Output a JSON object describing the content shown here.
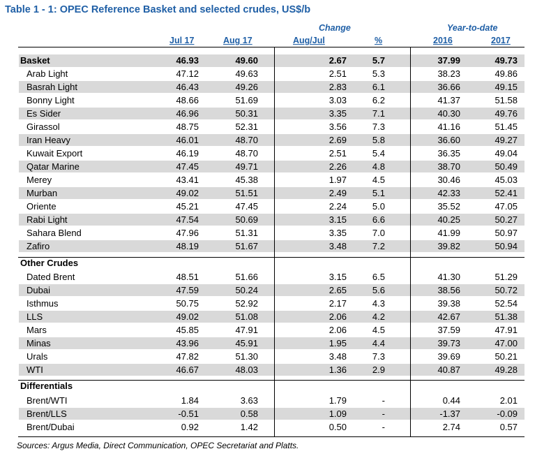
{
  "title": "Table 1 - 1: OPEC Reference Basket and selected crudes, US$/b",
  "headers": {
    "change": "Change",
    "ytd": "Year-to-date",
    "jul17": "Jul 17",
    "aug17": "Aug 17",
    "augjul": "Aug/Jul",
    "pct": "%",
    "y2016": "2016",
    "y2017": "2017"
  },
  "basket": {
    "name": "Basket",
    "jul": "46.93",
    "aug": "49.60",
    "chg": "2.67",
    "pct": "5.7",
    "y16": "37.99",
    "y17": "49.73"
  },
  "opec": [
    {
      "name": "Arab Light",
      "jul": "47.12",
      "aug": "49.63",
      "chg": "2.51",
      "pct": "5.3",
      "y16": "38.23",
      "y17": "49.86"
    },
    {
      "name": "Basrah Light",
      "jul": "46.43",
      "aug": "49.26",
      "chg": "2.83",
      "pct": "6.1",
      "y16": "36.66",
      "y17": "49.15"
    },
    {
      "name": "Bonny Light",
      "jul": "48.66",
      "aug": "51.69",
      "chg": "3.03",
      "pct": "6.2",
      "y16": "41.37",
      "y17": "51.58"
    },
    {
      "name": "Es Sider",
      "jul": "46.96",
      "aug": "50.31",
      "chg": "3.35",
      "pct": "7.1",
      "y16": "40.30",
      "y17": "49.76"
    },
    {
      "name": "Girassol",
      "jul": "48.75",
      "aug": "52.31",
      "chg": "3.56",
      "pct": "7.3",
      "y16": "41.16",
      "y17": "51.45"
    },
    {
      "name": "Iran Heavy",
      "jul": "46.01",
      "aug": "48.70",
      "chg": "2.69",
      "pct": "5.8",
      "y16": "36.60",
      "y17": "49.27"
    },
    {
      "name": "Kuwait Export",
      "jul": "46.19",
      "aug": "48.70",
      "chg": "2.51",
      "pct": "5.4",
      "y16": "36.35",
      "y17": "49.04"
    },
    {
      "name": "Qatar Marine",
      "jul": "47.45",
      "aug": "49.71",
      "chg": "2.26",
      "pct": "4.8",
      "y16": "38.70",
      "y17": "50.49"
    },
    {
      "name": "Merey",
      "jul": "43.41",
      "aug": "45.38",
      "chg": "1.97",
      "pct": "4.5",
      "y16": "30.46",
      "y17": "45.03"
    },
    {
      "name": "Murban",
      "jul": "49.02",
      "aug": "51.51",
      "chg": "2.49",
      "pct": "5.1",
      "y16": "42.33",
      "y17": "52.41"
    },
    {
      "name": "Oriente",
      "jul": "45.21",
      "aug": "47.45",
      "chg": "2.24",
      "pct": "5.0",
      "y16": "35.52",
      "y17": "47.05"
    },
    {
      "name": "Rabi Light",
      "jul": "47.54",
      "aug": "50.69",
      "chg": "3.15",
      "pct": "6.6",
      "y16": "40.25",
      "y17": "50.27"
    },
    {
      "name": "Sahara Blend",
      "jul": "47.96",
      "aug": "51.31",
      "chg": "3.35",
      "pct": "7.0",
      "y16": "41.99",
      "y17": "50.97"
    },
    {
      "name": "Zafiro",
      "jul": "48.19",
      "aug": "51.67",
      "chg": "3.48",
      "pct": "7.2",
      "y16": "39.82",
      "y17": "50.94"
    }
  ],
  "other_title": "Other Crudes",
  "other": [
    {
      "name": "Dated Brent",
      "jul": "48.51",
      "aug": "51.66",
      "chg": "3.15",
      "pct": "6.5",
      "y16": "41.30",
      "y17": "51.29"
    },
    {
      "name": "Dubai",
      "jul": "47.59",
      "aug": "50.24",
      "chg": "2.65",
      "pct": "5.6",
      "y16": "38.56",
      "y17": "50.72"
    },
    {
      "name": "Isthmus",
      "jul": "50.75",
      "aug": "52.92",
      "chg": "2.17",
      "pct": "4.3",
      "y16": "39.38",
      "y17": "52.54"
    },
    {
      "name": "LLS",
      "jul": "49.02",
      "aug": "51.08",
      "chg": "2.06",
      "pct": "4.2",
      "y16": "42.67",
      "y17": "51.38"
    },
    {
      "name": "Mars",
      "jul": "45.85",
      "aug": "47.91",
      "chg": "2.06",
      "pct": "4.5",
      "y16": "37.59",
      "y17": "47.91"
    },
    {
      "name": "Minas",
      "jul": "43.96",
      "aug": "45.91",
      "chg": "1.95",
      "pct": "4.4",
      "y16": "39.73",
      "y17": "47.00"
    },
    {
      "name": "Urals",
      "jul": "47.82",
      "aug": "51.30",
      "chg": "3.48",
      "pct": "7.3",
      "y16": "39.69",
      "y17": "50.21"
    },
    {
      "name": "WTI",
      "jul": "46.67",
      "aug": "48.03",
      "chg": "1.36",
      "pct": "2.9",
      "y16": "40.87",
      "y17": "49.28"
    }
  ],
  "diff_title": "Differentials",
  "diffs": [
    {
      "name": "Brent/WTI",
      "jul": "1.84",
      "aug": "3.63",
      "chg": "1.79",
      "pct": "-",
      "y16": "0.44",
      "y17": "2.01"
    },
    {
      "name": "Brent/LLS",
      "jul": "-0.51",
      "aug": "0.58",
      "chg": "1.09",
      "pct": "-",
      "y16": "-1.37",
      "y17": "-0.09"
    },
    {
      "name": "Brent/Dubai",
      "jul": "0.92",
      "aug": "1.42",
      "chg": "0.50",
      "pct": "-",
      "y16": "2.74",
      "y17": "0.57"
    }
  ],
  "source": "Sources: Argus Media, Direct Communication, OPEC Secretariat and Platts."
}
